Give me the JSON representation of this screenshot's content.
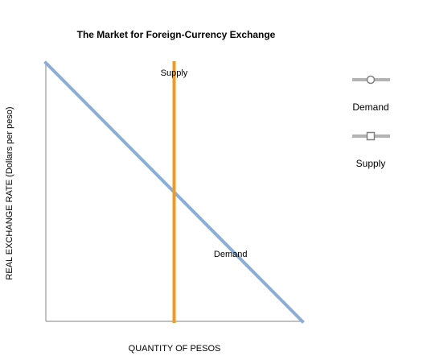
{
  "chart_data": {
    "type": "line",
    "title": "The Market for Foreign-Currency Exchange",
    "xlabel": "QUANTITY OF PESOS",
    "ylabel": "REAL EXCHANGE RATE (Dollars per peso)",
    "xlim": [
      0,
      1
    ],
    "ylim": [
      0,
      1
    ],
    "grid": false,
    "legend_position": "right",
    "series": [
      {
        "name": "Demand",
        "color": "#8aaed6",
        "marker": "circle",
        "points": [
          [
            0,
            1
          ],
          [
            1,
            0
          ]
        ],
        "label": "Demand",
        "label_at": [
          0.72,
          0.25
        ]
      },
      {
        "name": "Supply",
        "color": "#f19a1f",
        "marker": "square",
        "points": [
          [
            0.5,
            0
          ],
          [
            0.5,
            1
          ]
        ],
        "label": "Supply",
        "label_at": [
          0.5,
          0.95
        ]
      }
    ]
  }
}
